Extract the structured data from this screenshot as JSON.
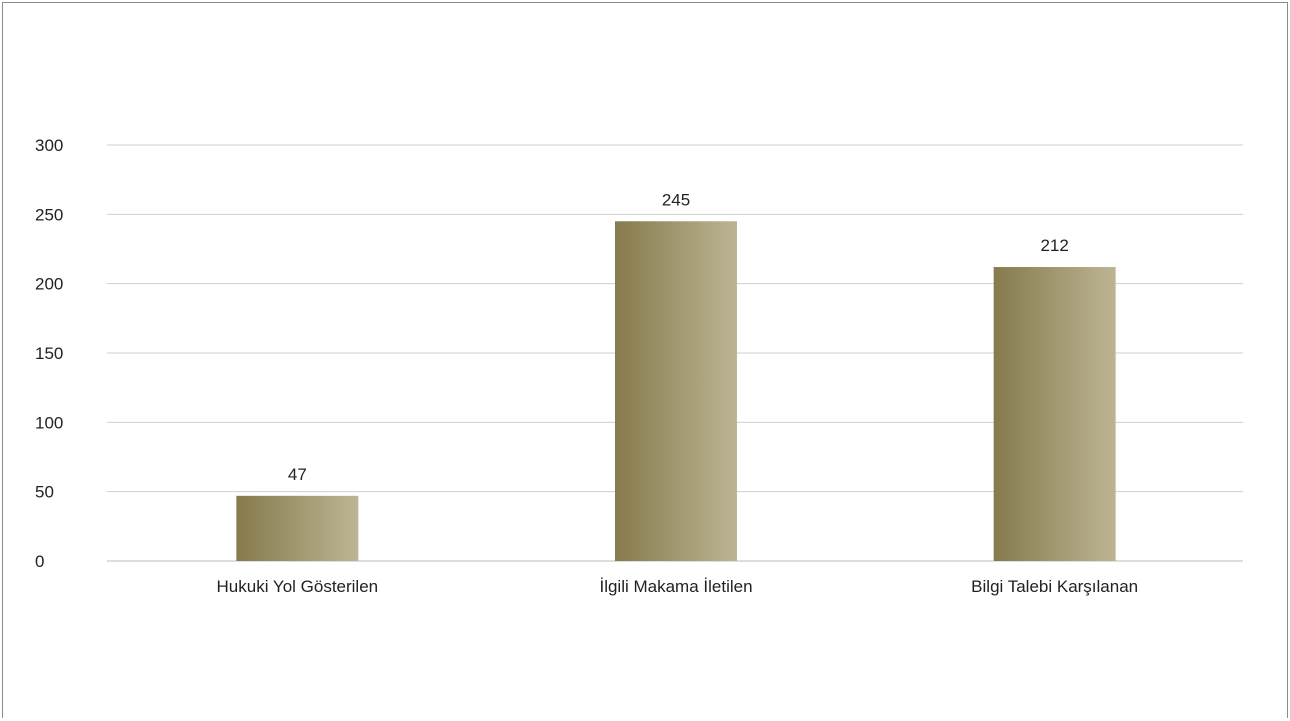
{
  "chart_data": {
    "type": "bar",
    "categories": [
      "Hukuki Yol Gösterilen",
      "İlgili Makama İletilen",
      "Bilgi Talebi Karşılanan"
    ],
    "values": [
      47,
      245,
      212
    ],
    "title": "",
    "xlabel": "",
    "ylabel": "",
    "ylim": [
      0,
      300
    ],
    "yticks": [
      0,
      50,
      100,
      150,
      200,
      250,
      300
    ],
    "grid": true,
    "legend": "none",
    "data_labels": true,
    "bar_gradient": [
      "#857b4c",
      "#bdb494"
    ]
  }
}
